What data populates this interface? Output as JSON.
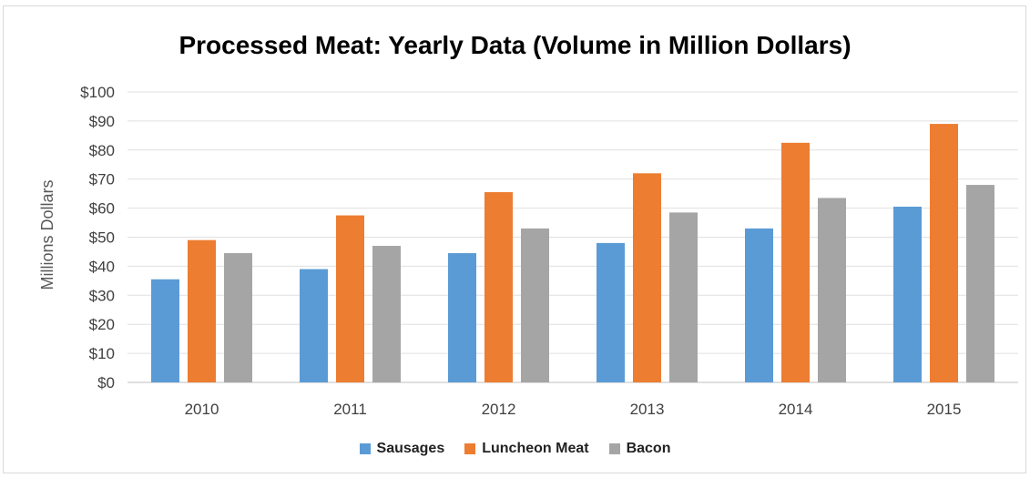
{
  "chart_data": {
    "type": "bar",
    "title": "Processed Meat: Yearly Data (Volume in Million Dollars)",
    "xlabel": "",
    "ylabel": "Millions Dollars",
    "ylim": [
      0,
      100
    ],
    "yticks": [
      "$0",
      "$10",
      "$20",
      "$30",
      "$40",
      "$50",
      "$60",
      "$70",
      "$80",
      "$90",
      "$100"
    ],
    "grid": true,
    "legend_position": "bottom",
    "categories": [
      "2010",
      "2011",
      "2012",
      "2013",
      "2014",
      "2015"
    ],
    "series": [
      {
        "name": "Sausages",
        "color": "#5b9bd5",
        "values": [
          35.5,
          39,
          44.5,
          48,
          53,
          60.5
        ]
      },
      {
        "name": "Luncheon Meat",
        "color": "#ed7d31",
        "values": [
          49,
          57.5,
          65.5,
          72,
          82.5,
          89
        ]
      },
      {
        "name": "Bacon",
        "color": "#a5a5a5",
        "values": [
          44.5,
          47,
          53,
          58.5,
          63.5,
          68
        ]
      }
    ]
  }
}
